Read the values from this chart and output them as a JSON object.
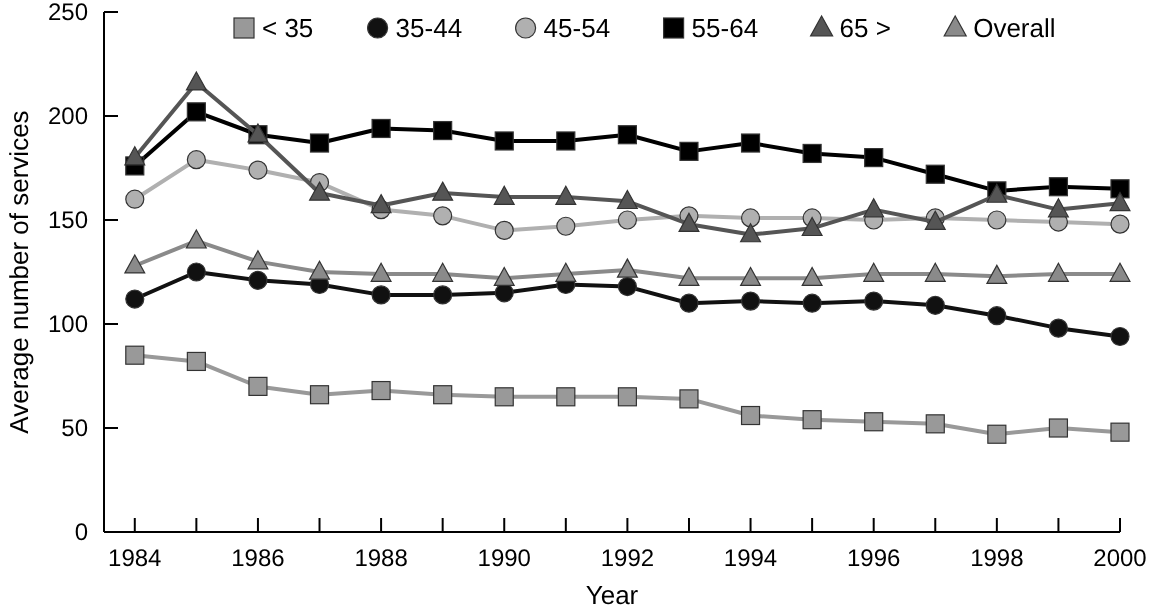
{
  "chart_data": {
    "type": "line",
    "xlabel": "Year",
    "ylabel": "Average number of services",
    "x": [
      1984,
      1985,
      1986,
      1987,
      1988,
      1989,
      1990,
      1991,
      1992,
      1993,
      1994,
      1995,
      1996,
      1997,
      1998,
      1999,
      2000
    ],
    "xlim": [
      1983.5,
      2000
    ],
    "xticks": [
      1984,
      {
        "value": 1985,
        "label": null
      },
      1986,
      {
        "value": 1987,
        "label": null
      },
      1988,
      {
        "value": 1989,
        "label": null
      },
      1990,
      {
        "value": 1991,
        "label": null
      },
      1992,
      {
        "value": 1993,
        "label": null
      },
      1994,
      {
        "value": 1995,
        "label": null
      },
      1996,
      {
        "value": 1997,
        "label": null
      },
      1998,
      {
        "value": 1999,
        "label": null
      },
      2000
    ],
    "ylim": [
      0,
      250
    ],
    "yticks": [
      0,
      50,
      100,
      150,
      200,
      250
    ],
    "grid": false,
    "legend": "top right",
    "series": [
      {
        "name": "< 35",
        "color": "#999999",
        "marker": "square",
        "values": [
          85,
          82,
          70,
          66,
          68,
          66,
          65,
          65,
          65,
          64,
          56,
          54,
          53,
          52,
          47,
          50,
          48
        ]
      },
      {
        "name": "35-44",
        "color": "#111111",
        "marker": "circle",
        "values": [
          112,
          125,
          121,
          119,
          114,
          114,
          115,
          119,
          118,
          110,
          111,
          110,
          111,
          109,
          104,
          98,
          94
        ]
      },
      {
        "name": "45-54",
        "color": "#b0b0b0",
        "marker": "circle",
        "values": [
          160,
          179,
          174,
          168,
          155,
          152,
          145,
          147,
          150,
          152,
          151,
          151,
          150,
          151,
          150,
          149,
          148
        ]
      },
      {
        "name": "55-64",
        "color": "#000000",
        "marker": "square",
        "values": [
          176,
          202,
          191,
          187,
          194,
          193,
          188,
          188,
          191,
          183,
          187,
          182,
          180,
          172,
          164,
          166,
          165
        ]
      },
      {
        "name": "65 >",
        "color": "#555555",
        "marker": "triangle",
        "values": [
          180,
          216,
          191,
          163,
          157,
          163,
          161,
          161,
          159,
          148,
          143,
          146,
          155,
          149,
          162,
          155,
          158
        ]
      },
      {
        "name": "Overall",
        "color": "#8a8a8a",
        "marker": "triangle",
        "values": [
          128,
          140,
          130,
          125,
          124,
          124,
          122,
          124,
          126,
          122,
          122,
          122,
          124,
          124,
          123,
          124,
          124
        ]
      }
    ]
  }
}
